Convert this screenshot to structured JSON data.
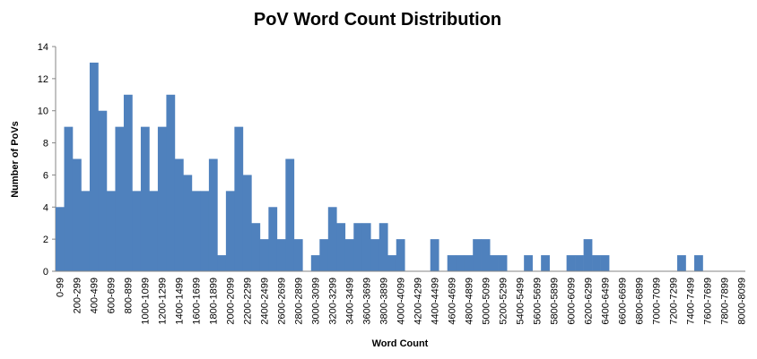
{
  "chart_data": {
    "type": "bar",
    "title": "PoV Word Count Distribution",
    "x_label": "Word Count",
    "y_label": "Number of PoVs",
    "categories": [
      "0-99",
      null,
      "200-299",
      null,
      "400-499",
      null,
      "600-699",
      null,
      "800-899",
      null,
      "1000-1099",
      null,
      "1200-1299",
      null,
      "1400-1499",
      null,
      "1600-1699",
      null,
      "1800-1899",
      null,
      "2000-2099",
      null,
      "2200-2299",
      null,
      "2400-2499",
      null,
      "2600-2699",
      null,
      "2800-2899",
      null,
      "3000-3099",
      null,
      "3200-3299",
      null,
      "3400-3499",
      null,
      "3600-3699",
      null,
      "3800-3899",
      null,
      "4000-4099",
      null,
      "4200-4299",
      null,
      "4400-4499",
      null,
      "4600-4699",
      null,
      "4800-4899",
      null,
      "5000-5099",
      null,
      "5200-5299",
      null,
      "5400-5499",
      null,
      "5600-5699",
      null,
      "5800-5899",
      null,
      "6000-6099",
      null,
      "6200-6299",
      null,
      "6400-6499",
      null,
      "6600-6699",
      null,
      "6800-6899",
      null,
      "7000-7099",
      null,
      "7200-7299",
      null,
      "7400-7499",
      null,
      "7600-7699",
      null,
      "7800-7899",
      null,
      "8000-8099"
    ],
    "values": [
      4,
      9,
      7,
      5,
      13,
      10,
      5,
      9,
      11,
      5,
      9,
      5,
      9,
      11,
      7,
      6,
      5,
      5,
      7,
      1,
      5,
      9,
      6,
      3,
      2,
      4,
      2,
      7,
      2,
      0,
      1,
      2,
      4,
      3,
      2,
      3,
      3,
      2,
      3,
      1,
      2,
      0,
      0,
      0,
      2,
      0,
      1,
      1,
      1,
      2,
      2,
      1,
      1,
      0,
      0,
      1,
      0,
      1,
      0,
      0,
      1,
      1,
      2,
      1,
      1,
      0,
      0,
      0,
      0,
      0,
      0,
      0,
      0,
      1,
      0,
      1,
      0,
      0,
      0,
      0,
      0
    ],
    "color": "#4f81bd",
    "ylim": [
      0,
      14
    ],
    "yticks": [
      0,
      2,
      4,
      6,
      8,
      10,
      12,
      14
    ],
    "grid": false
  }
}
